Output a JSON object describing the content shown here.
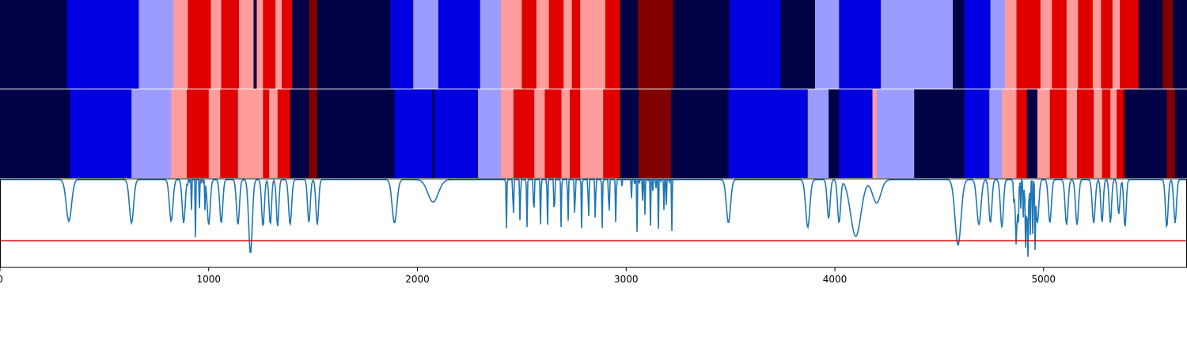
{
  "chart_data": {
    "type": "heatmap",
    "title": "",
    "xlabel": "",
    "ylabel": "",
    "xlim": [
      0,
      5687
    ],
    "x_ticks": [
      "0",
      "1000",
      "2000",
      "3000",
      "4000",
      "5000"
    ],
    "grid": false,
    "legend": "none",
    "state_colors": {
      "0": "#000045",
      "1": "#0000e0",
      "2": "#9c9cff",
      "3": "#ff9c9c",
      "4": "#e00000",
      "5": "#800000"
    },
    "rows": [
      {
        "segments": [
          [
            0,
            320,
            0
          ],
          [
            320,
            665,
            1
          ],
          [
            665,
            830,
            2
          ],
          [
            830,
            900,
            3
          ],
          [
            900,
            1010,
            4
          ],
          [
            1010,
            1060,
            3
          ],
          [
            1060,
            1145,
            4
          ],
          [
            1145,
            1215,
            3
          ],
          [
            1215,
            1230,
            0
          ],
          [
            1230,
            1260,
            3
          ],
          [
            1260,
            1320,
            4
          ],
          [
            1320,
            1350,
            3
          ],
          [
            1350,
            1400,
            4
          ],
          [
            1400,
            1480,
            0
          ],
          [
            1480,
            1520,
            5
          ],
          [
            1520,
            1870,
            0
          ],
          [
            1870,
            1980,
            1
          ],
          [
            1980,
            2100,
            2
          ],
          [
            2100,
            2300,
            1
          ],
          [
            2300,
            2400,
            2
          ],
          [
            2400,
            2500,
            3
          ],
          [
            2500,
            2570,
            4
          ],
          [
            2570,
            2630,
            3
          ],
          [
            2630,
            2700,
            4
          ],
          [
            2700,
            2740,
            3
          ],
          [
            2740,
            2780,
            4
          ],
          [
            2780,
            2900,
            3
          ],
          [
            2900,
            2970,
            4
          ],
          [
            2970,
            3055,
            0
          ],
          [
            3055,
            3225,
            5
          ],
          [
            3225,
            3495,
            0
          ],
          [
            3495,
            3740,
            1
          ],
          [
            3740,
            3905,
            0
          ],
          [
            3905,
            4020,
            2
          ],
          [
            4020,
            4220,
            1
          ],
          [
            4220,
            4565,
            2
          ],
          [
            4565,
            4620,
            0
          ],
          [
            4620,
            4745,
            1
          ],
          [
            4745,
            4815,
            2
          ],
          [
            4815,
            4870,
            3
          ],
          [
            4870,
            4985,
            4
          ],
          [
            4985,
            5040,
            3
          ],
          [
            5040,
            5110,
            4
          ],
          [
            5110,
            5165,
            3
          ],
          [
            5165,
            5235,
            4
          ],
          [
            5235,
            5275,
            3
          ],
          [
            5275,
            5330,
            4
          ],
          [
            5330,
            5365,
            3
          ],
          [
            5365,
            5455,
            4
          ],
          [
            5455,
            5570,
            0
          ],
          [
            5570,
            5620,
            5
          ],
          [
            5620,
            5687,
            0
          ]
        ]
      },
      {
        "segments": [
          [
            0,
            335,
            0
          ],
          [
            335,
            630,
            1
          ],
          [
            630,
            820,
            2
          ],
          [
            820,
            895,
            3
          ],
          [
            895,
            1000,
            4
          ],
          [
            1000,
            1055,
            3
          ],
          [
            1055,
            1140,
            4
          ],
          [
            1140,
            1260,
            3
          ],
          [
            1260,
            1290,
            4
          ],
          [
            1290,
            1330,
            3
          ],
          [
            1330,
            1390,
            4
          ],
          [
            1390,
            1480,
            0
          ],
          [
            1480,
            1520,
            5
          ],
          [
            1520,
            1890,
            0
          ],
          [
            1890,
            2070,
            1
          ],
          [
            2070,
            2080,
            0
          ],
          [
            2080,
            2290,
            1
          ],
          [
            2290,
            2400,
            2
          ],
          [
            2400,
            2460,
            3
          ],
          [
            2460,
            2560,
            4
          ],
          [
            2560,
            2610,
            3
          ],
          [
            2610,
            2690,
            4
          ],
          [
            2690,
            2730,
            3
          ],
          [
            2730,
            2780,
            4
          ],
          [
            2780,
            2890,
            3
          ],
          [
            2890,
            2970,
            4
          ],
          [
            2970,
            3060,
            0
          ],
          [
            3060,
            3215,
            5
          ],
          [
            3215,
            3490,
            0
          ],
          [
            3490,
            3870,
            1
          ],
          [
            3870,
            3970,
            2
          ],
          [
            3970,
            4020,
            0
          ],
          [
            4020,
            4180,
            1
          ],
          [
            4180,
            4200,
            3
          ],
          [
            4200,
            4380,
            2
          ],
          [
            4380,
            4620,
            0
          ],
          [
            4620,
            4740,
            1
          ],
          [
            4740,
            4800,
            2
          ],
          [
            4800,
            4870,
            3
          ],
          [
            4870,
            4920,
            4
          ],
          [
            4920,
            4970,
            0
          ],
          [
            4970,
            5030,
            3
          ],
          [
            5030,
            5110,
            4
          ],
          [
            5110,
            5160,
            3
          ],
          [
            5160,
            5240,
            4
          ],
          [
            5240,
            5280,
            3
          ],
          [
            5280,
            5320,
            4
          ],
          [
            5320,
            5350,
            3
          ],
          [
            5350,
            5380,
            4
          ],
          [
            5380,
            5390,
            5
          ],
          [
            5390,
            5590,
            0
          ],
          [
            5590,
            5630,
            5
          ],
          [
            5630,
            5687,
            0
          ]
        ]
      }
    ],
    "line_series": {
      "color": "#1f77b4",
      "y_range": [
        0,
        1
      ],
      "threshold": 0.3,
      "threshold_color": "#e00000",
      "dips": [
        [
          330,
          0.52,
          18
        ],
        [
          630,
          0.5,
          14
        ],
        [
          820,
          0.52,
          12
        ],
        [
          880,
          0.5,
          10
        ],
        [
          1000,
          0.48,
          10
        ],
        [
          1060,
          0.5,
          10
        ],
        [
          1140,
          0.48,
          10
        ],
        [
          1200,
          0.15,
          12
        ],
        [
          1260,
          0.46,
          9
        ],
        [
          1295,
          0.48,
          8
        ],
        [
          1330,
          0.46,
          8
        ],
        [
          1390,
          0.48,
          10
        ],
        [
          1480,
          0.5,
          9
        ],
        [
          1520,
          0.48,
          9
        ],
        [
          1890,
          0.5,
          16
        ],
        [
          3490,
          0.5,
          14
        ],
        [
          3870,
          0.45,
          14
        ],
        [
          3970,
          0.55,
          10
        ],
        [
          4020,
          0.5,
          10
        ],
        [
          4100,
          0.35,
          35
        ],
        [
          4590,
          0.25,
          20
        ],
        [
          4690,
          0.48,
          14
        ],
        [
          4745,
          0.5,
          10
        ],
        [
          4800,
          0.45,
          10
        ],
        [
          4870,
          0.45,
          10
        ],
        [
          4920,
          0.55,
          12
        ],
        [
          4970,
          0.5,
          10
        ],
        [
          5030,
          0.5,
          10
        ],
        [
          5110,
          0.48,
          10
        ],
        [
          5160,
          0.48,
          10
        ],
        [
          5240,
          0.5,
          10
        ],
        [
          5280,
          0.5,
          8
        ],
        [
          5320,
          0.5,
          8
        ],
        [
          5360,
          0.6,
          8
        ],
        [
          5390,
          0.45,
          8
        ],
        [
          5590,
          0.45,
          9
        ],
        [
          5630,
          0.5,
          9
        ]
      ],
      "dense_regions": [
        [
          895,
          1000,
          1.9,
          0.34
        ],
        [
          1620,
          1880,
          0.0,
          0.0
        ],
        [
          2410,
          2980,
          2.9,
          0.44
        ],
        [
          3020,
          3220,
          2.6,
          0.4
        ],
        [
          4850,
          4960,
          1.6,
          0.3
        ]
      ],
      "bowls": [
        [
          2060,
          2090,
          0.57,
          0.33,
          25
        ],
        [
          4190,
          4210,
          0.55,
          0.4,
          20
        ]
      ]
    }
  }
}
